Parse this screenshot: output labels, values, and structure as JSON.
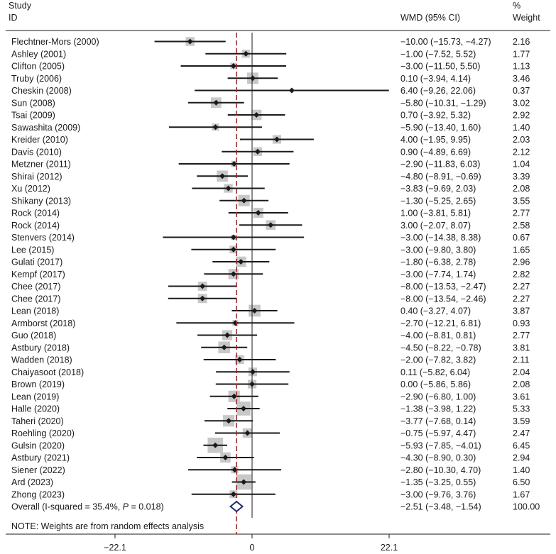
{
  "header": {
    "study_label": "Study",
    "id_label": "ID",
    "effect_label": "WMD (95% CI)",
    "pct_label": "%",
    "weight_label": "Weight"
  },
  "note": "NOTE: Weights are from random effects analysis",
  "chart_data": {
    "type": "forest",
    "title": "",
    "xlim": [
      -29,
      29
    ],
    "x_ticks": [
      -22.1,
      0,
      22.1
    ],
    "x_tick_labels": [
      "−22.1",
      "0",
      "22.1"
    ],
    "null_line": 0,
    "pooled_line": -2.51,
    "studies": [
      {
        "id": "Flechtner-Mors (2000)",
        "est": -10.0,
        "lo": -15.73,
        "hi": -4.27,
        "ci_text": "−10.00 (−15.73, −4.27)",
        "weight": 2.16,
        "weight_text": "2.16"
      },
      {
        "id": "Ashley (2001)",
        "est": -1.0,
        "lo": -7.52,
        "hi": 5.52,
        "ci_text": "−1.00 (−7.52, 5.52)",
        "weight": 1.77,
        "weight_text": "1.77"
      },
      {
        "id": "Clifton (2005)",
        "est": -3.0,
        "lo": -11.5,
        "hi": 5.5,
        "ci_text": "−3.00 (−11.50, 5.50)",
        "weight": 1.13,
        "weight_text": "1.13"
      },
      {
        "id": "Truby (2006)",
        "est": 0.1,
        "lo": -3.94,
        "hi": 4.14,
        "ci_text": "0.10 (−3.94, 4.14)",
        "weight": 3.46,
        "weight_text": "3.46"
      },
      {
        "id": "Cheskin (2008)",
        "est": 6.4,
        "lo": -9.26,
        "hi": 22.06,
        "ci_text": "6.40 (−9.26, 22.06)",
        "weight": 0.37,
        "weight_text": "0.37"
      },
      {
        "id": "Sun (2008)",
        "est": -5.8,
        "lo": -10.31,
        "hi": -1.29,
        "ci_text": "−5.80 (−10.31, −1.29)",
        "weight": 3.02,
        "weight_text": "3.02"
      },
      {
        "id": "Tsai (2009)",
        "est": 0.7,
        "lo": -3.92,
        "hi": 5.32,
        "ci_text": "0.70 (−3.92, 5.32)",
        "weight": 2.92,
        "weight_text": "2.92"
      },
      {
        "id": "Sawashita (2009)",
        "est": -5.9,
        "lo": -13.4,
        "hi": 1.6,
        "ci_text": "−5.90 (−13.40, 1.60)",
        "weight": 1.4,
        "weight_text": "1.40"
      },
      {
        "id": "Kreider (2010)",
        "est": 4.0,
        "lo": -1.95,
        "hi": 9.95,
        "ci_text": "4.00 (−1.95, 9.95)",
        "weight": 2.03,
        "weight_text": "2.03"
      },
      {
        "id": "Davis (2010)",
        "est": 0.9,
        "lo": -4.89,
        "hi": 6.69,
        "ci_text": "0.90 (−4.89, 6.69)",
        "weight": 2.12,
        "weight_text": "2.12"
      },
      {
        "id": "Metzner (2011)",
        "est": -2.9,
        "lo": -11.83,
        "hi": 6.03,
        "ci_text": "−2.90 (−11.83, 6.03)",
        "weight": 1.04,
        "weight_text": "1.04"
      },
      {
        "id": "Shirai (2012)",
        "est": -4.8,
        "lo": -8.91,
        "hi": -0.69,
        "ci_text": "−4.80 (−8.91, −0.69)",
        "weight": 3.39,
        "weight_text": "3.39"
      },
      {
        "id": "Xu (2012)",
        "est": -3.83,
        "lo": -9.69,
        "hi": 2.03,
        "ci_text": "−3.83 (−9.69, 2.03)",
        "weight": 2.08,
        "weight_text": "2.08"
      },
      {
        "id": "Shikany (2013)",
        "est": -1.3,
        "lo": -5.25,
        "hi": 2.65,
        "ci_text": "−1.30 (−5.25, 2.65)",
        "weight": 3.55,
        "weight_text": "3.55"
      },
      {
        "id": "Rock (2014)",
        "est": 1.0,
        "lo": -3.81,
        "hi": 5.81,
        "ci_text": "1.00 (−3.81, 5.81)",
        "weight": 2.77,
        "weight_text": "2.77"
      },
      {
        "id": "Rock (2014)",
        "est": 3.0,
        "lo": -2.07,
        "hi": 8.07,
        "ci_text": "3.00 (−2.07, 8.07)",
        "weight": 2.58,
        "weight_text": "2.58"
      },
      {
        "id": "Stenvers (2014)",
        "est": -3.0,
        "lo": -14.38,
        "hi": 8.38,
        "ci_text": "−3.00 (−14.38, 8.38)",
        "weight": 0.67,
        "weight_text": "0.67"
      },
      {
        "id": "Lee (2015)",
        "est": -3.0,
        "lo": -9.8,
        "hi": 3.8,
        "ci_text": "−3.00 (−9.80, 3.80)",
        "weight": 1.65,
        "weight_text": "1.65"
      },
      {
        "id": "Gulati (2017)",
        "est": -1.8,
        "lo": -6.38,
        "hi": 2.78,
        "ci_text": "−1.80 (−6.38, 2.78)",
        "weight": 2.96,
        "weight_text": "2.96"
      },
      {
        "id": "Kempf (2017)",
        "est": -3.0,
        "lo": -7.74,
        "hi": 1.74,
        "ci_text": "−3.00 (−7.74, 1.74)",
        "weight": 2.82,
        "weight_text": "2.82"
      },
      {
        "id": "Chee (2017)",
        "est": -8.0,
        "lo": -13.53,
        "hi": -2.47,
        "ci_text": "−8.00 (−13.53, −2.47)",
        "weight": 2.27,
        "weight_text": "2.27"
      },
      {
        "id": "Chee (2017)",
        "est": -8.0,
        "lo": -13.54,
        "hi": -2.46,
        "ci_text": "−8.00 (−13.54, −2.46)",
        "weight": 2.27,
        "weight_text": "2.27"
      },
      {
        "id": "Lean (2018)",
        "est": 0.4,
        "lo": -3.27,
        "hi": 4.07,
        "ci_text": "0.40 (−3.27, 4.07)",
        "weight": 3.87,
        "weight_text": "3.87"
      },
      {
        "id": "Armborst (2018)",
        "est": -2.7,
        "lo": -12.21,
        "hi": 6.81,
        "ci_text": "−2.70 (−12.21, 6.81)",
        "weight": 0.93,
        "weight_text": "0.93"
      },
      {
        "id": "Guo (2018)",
        "est": -4.0,
        "lo": -8.81,
        "hi": 0.81,
        "ci_text": "−4.00 (−8.81, 0.81)",
        "weight": 2.77,
        "weight_text": "2.77"
      },
      {
        "id": "Astbury (2018)",
        "est": -4.5,
        "lo": -8.22,
        "hi": -0.78,
        "ci_text": "−4.50 (−8.22, −0.78)",
        "weight": 3.81,
        "weight_text": "3.81"
      },
      {
        "id": "Wadden (2018)",
        "est": -2.0,
        "lo": -7.82,
        "hi": 3.82,
        "ci_text": "−2.00 (−7.82, 3.82)",
        "weight": 2.11,
        "weight_text": "2.11"
      },
      {
        "id": "Chaiyasoot (2018)",
        "est": 0.11,
        "lo": -5.82,
        "hi": 6.04,
        "ci_text": "0.11 (−5.82, 6.04)",
        "weight": 2.04,
        "weight_text": "2.04"
      },
      {
        "id": "Brown (2019)",
        "est": 0.0,
        "lo": -5.86,
        "hi": 5.86,
        "ci_text": "0.00 (−5.86, 5.86)",
        "weight": 2.08,
        "weight_text": "2.08"
      },
      {
        "id": "Lean (2019)",
        "est": -2.9,
        "lo": -6.8,
        "hi": 1.0,
        "ci_text": "−2.90 (−6.80, 1.00)",
        "weight": 3.61,
        "weight_text": "3.61"
      },
      {
        "id": "Halle (2020)",
        "est": -1.38,
        "lo": -3.98,
        "hi": 1.22,
        "ci_text": "−1.38 (−3.98, 1.22)",
        "weight": 5.33,
        "weight_text": "5.33"
      },
      {
        "id": "Taheri (2020)",
        "est": -3.77,
        "lo": -7.68,
        "hi": 0.14,
        "ci_text": "−3.77 (−7.68, 0.14)",
        "weight": 3.59,
        "weight_text": "3.59"
      },
      {
        "id": "Roehling (2020)",
        "est": -0.75,
        "lo": -5.97,
        "hi": 4.47,
        "ci_text": "−0.75 (−5.97, 4.47)",
        "weight": 2.47,
        "weight_text": "2.47"
      },
      {
        "id": "Gulsin (2020)",
        "est": -5.93,
        "lo": -7.85,
        "hi": -4.01,
        "ci_text": "−5.93 (−7.85, −4.01)",
        "weight": 6.45,
        "weight_text": "6.45"
      },
      {
        "id": "Astbury (2021)",
        "est": -4.3,
        "lo": -8.9,
        "hi": 0.3,
        "ci_text": "−4.30 (−8.90, 0.30)",
        "weight": 2.94,
        "weight_text": "2.94"
      },
      {
        "id": "Siener (2022)",
        "est": -2.8,
        "lo": -10.3,
        "hi": 4.7,
        "ci_text": "−2.80 (−10.30, 4.70)",
        "weight": 1.4,
        "weight_text": "1.40"
      },
      {
        "id": "Ard (2023)",
        "est": -1.35,
        "lo": -3.25,
        "hi": 0.55,
        "ci_text": "−1.35 (−3.25, 0.55)",
        "weight": 6.5,
        "weight_text": "6.50"
      },
      {
        "id": "Zhong (2023)",
        "est": -3.0,
        "lo": -9.76,
        "hi": 3.76,
        "ci_text": "−3.00 (−9.76, 3.76)",
        "weight": 1.67,
        "weight_text": "1.67"
      }
    ],
    "overall": {
      "label_prefix": "Overall  (I-squared = 35.4%, ",
      "label_p": "P",
      "label_suffix": " = 0.018)",
      "est": -2.51,
      "lo": -3.48,
      "hi": -1.54,
      "ci_text": "−2.51 (−3.48, −1.54)",
      "weight_text": "100.00"
    },
    "colors": {
      "box": "#c8c8c8",
      "point": "#1a1a1a",
      "ci_line": "#1a1a1a",
      "null_line": "#1a1a1a",
      "pooled_line": "#9b2c2c",
      "diamond": "#1f2a6e"
    }
  }
}
